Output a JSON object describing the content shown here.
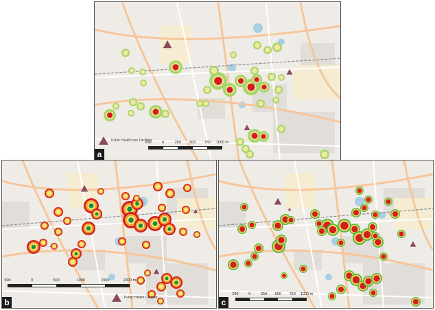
{
  "panels": {
    "a": {
      "letter": "a",
      "legend": "Public Healthcare Facilities",
      "scale": [
        "250",
        "0",
        "250",
        "500",
        "750",
        "1000 m"
      ]
    },
    "b": {
      "letter": "b",
      "legend": "Public Health Centres",
      "scale": [
        "500",
        "0",
        "500",
        "1000",
        "1500",
        "2000 m"
      ]
    },
    "c": {
      "letter": "c",
      "scale": [
        "250",
        "0",
        "250",
        "500",
        "750",
        "1000 m"
      ]
    }
  },
  "colors": {
    "basemap": "#efece7",
    "industrial": "#f5ecd1",
    "residential": "#d7d4cf",
    "road_major": "#f6c69a",
    "road_minor": "#ffffff",
    "water": "#a8cfe3",
    "railway": "#8d8d8d",
    "facility_marker": "#8a4b57",
    "hotspot_outer": "#a8d66a",
    "hotspot_mid": "#f0a630",
    "hotspot_core": "#d21f1f",
    "hotspot_center_b": "#1e8c3a"
  }
}
